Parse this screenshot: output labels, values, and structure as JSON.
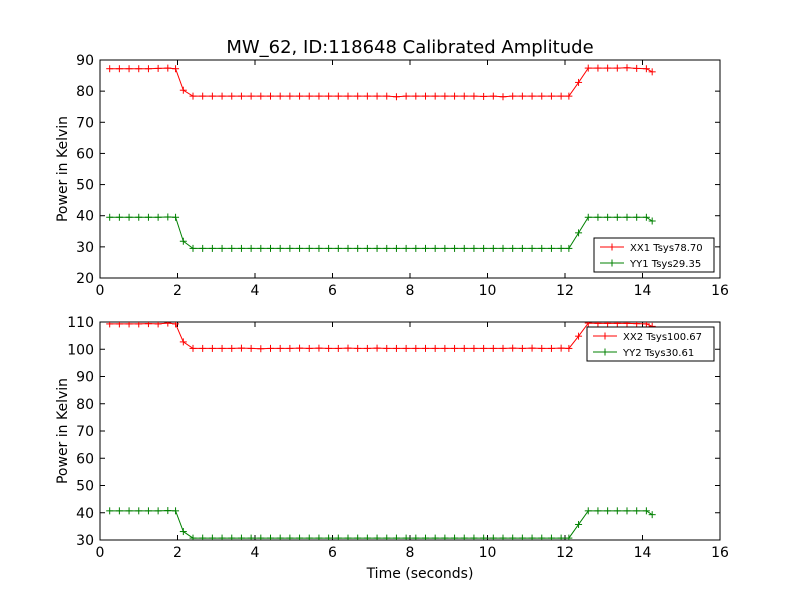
{
  "title": "MW_62, ID:118648 Calibrated Amplitude",
  "colors": {
    "red": "#ff0000",
    "green": "#008000",
    "axis": "#000000",
    "background": "#ffffff"
  },
  "chart_data": [
    {
      "type": "line",
      "title": "MW_62, ID:118648 Calibrated Amplitude",
      "xlabel": "",
      "ylabel": "Power in Kelvin",
      "xlim": [
        0,
        16
      ],
      "ylim": [
        20,
        90
      ],
      "xticks": [
        0,
        2,
        4,
        6,
        8,
        10,
        12,
        14,
        16
      ],
      "yticks": [
        20,
        30,
        40,
        50,
        60,
        70,
        80,
        90
      ],
      "grid": false,
      "legend": "lower-right",
      "marker": "+",
      "x": [
        0.25,
        0.5,
        0.75,
        1.0,
        1.25,
        1.5,
        1.75,
        1.95,
        2.15,
        2.4,
        2.65,
        2.9,
        3.15,
        3.4,
        3.65,
        3.9,
        4.15,
        4.4,
        4.65,
        4.9,
        5.15,
        5.4,
        5.65,
        5.9,
        6.15,
        6.4,
        6.65,
        6.9,
        7.15,
        7.4,
        7.65,
        7.9,
        8.15,
        8.4,
        8.65,
        8.9,
        9.15,
        9.4,
        9.65,
        9.9,
        10.15,
        10.4,
        10.65,
        10.9,
        11.15,
        11.4,
        11.65,
        11.9,
        12.1,
        12.35,
        12.6,
        12.85,
        13.1,
        13.35,
        13.6,
        13.85,
        14.1,
        14.25
      ],
      "series": [
        {
          "name": "XX1 Tsys78.70",
          "color": "#ff0000",
          "values": [
            87.2,
            87.2,
            87.2,
            87.2,
            87.2,
            87.3,
            87.4,
            87.2,
            80.3,
            78.4,
            78.4,
            78.4,
            78.4,
            78.4,
            78.4,
            78.4,
            78.4,
            78.4,
            78.4,
            78.4,
            78.4,
            78.4,
            78.4,
            78.4,
            78.4,
            78.4,
            78.4,
            78.4,
            78.4,
            78.4,
            78.2,
            78.4,
            78.4,
            78.4,
            78.4,
            78.4,
            78.4,
            78.4,
            78.4,
            78.3,
            78.4,
            78.2,
            78.4,
            78.4,
            78.4,
            78.4,
            78.4,
            78.4,
            78.4,
            82.8,
            87.4,
            87.4,
            87.4,
            87.4,
            87.5,
            87.3,
            87.2,
            86.2
          ]
        },
        {
          "name": "YY1 Tsys29.35",
          "color": "#008000",
          "values": [
            39.5,
            39.5,
            39.5,
            39.5,
            39.5,
            39.5,
            39.6,
            39.5,
            31.8,
            29.5,
            29.5,
            29.5,
            29.5,
            29.5,
            29.5,
            29.5,
            29.5,
            29.5,
            29.5,
            29.5,
            29.5,
            29.5,
            29.5,
            29.5,
            29.5,
            29.5,
            29.5,
            29.5,
            29.5,
            29.5,
            29.5,
            29.5,
            29.5,
            29.5,
            29.5,
            29.5,
            29.5,
            29.5,
            29.5,
            29.5,
            29.5,
            29.5,
            29.5,
            29.5,
            29.5,
            29.5,
            29.5,
            29.5,
            29.5,
            34.5,
            39.5,
            39.5,
            39.5,
            39.5,
            39.5,
            39.5,
            39.5,
            38.3
          ]
        }
      ]
    },
    {
      "type": "line",
      "title": "",
      "xlabel": "Time (seconds)",
      "ylabel": "Power in Kelvin",
      "xlim": [
        0,
        16
      ],
      "ylim": [
        30,
        110
      ],
      "xticks": [
        0,
        2,
        4,
        6,
        8,
        10,
        12,
        14,
        16
      ],
      "yticks": [
        30,
        40,
        50,
        60,
        70,
        80,
        90,
        100,
        110
      ],
      "grid": false,
      "legend": "upper-right",
      "marker": "+",
      "x": [
        0.25,
        0.5,
        0.75,
        1.0,
        1.25,
        1.5,
        1.75,
        1.95,
        2.15,
        2.4,
        2.65,
        2.9,
        3.15,
        3.4,
        3.65,
        3.9,
        4.15,
        4.4,
        4.65,
        4.9,
        5.15,
        5.4,
        5.65,
        5.9,
        6.15,
        6.4,
        6.65,
        6.9,
        7.15,
        7.4,
        7.65,
        7.9,
        8.15,
        8.4,
        8.65,
        8.9,
        9.15,
        9.4,
        9.65,
        9.9,
        10.15,
        10.4,
        10.65,
        10.9,
        11.15,
        11.4,
        11.65,
        11.9,
        12.1,
        12.35,
        12.6,
        12.85,
        13.1,
        13.35,
        13.6,
        13.85,
        14.1,
        14.25
      ],
      "series": [
        {
          "name": "XX2 Tsys100.67",
          "color": "#ff0000",
          "values": [
            109.3,
            109.3,
            109.3,
            109.3,
            109.4,
            109.3,
            109.6,
            109.3,
            102.7,
            100.3,
            100.3,
            100.3,
            100.3,
            100.3,
            100.4,
            100.3,
            100.2,
            100.3,
            100.3,
            100.3,
            100.4,
            100.3,
            100.4,
            100.3,
            100.3,
            100.4,
            100.3,
            100.3,
            100.4,
            100.3,
            100.3,
            100.3,
            100.3,
            100.3,
            100.3,
            100.3,
            100.3,
            100.3,
            100.3,
            100.3,
            100.3,
            100.3,
            100.4,
            100.3,
            100.4,
            100.3,
            100.3,
            100.4,
            100.3,
            104.8,
            109.6,
            109.5,
            109.5,
            109.5,
            109.5,
            109.4,
            109.3,
            108.4
          ]
        },
        {
          "name": "YY2 Tsys30.61",
          "color": "#008000",
          "values": [
            40.7,
            40.7,
            40.7,
            40.7,
            40.7,
            40.7,
            40.8,
            40.7,
            33.1,
            30.7,
            30.7,
            30.7,
            30.7,
            30.7,
            30.7,
            30.7,
            30.7,
            30.7,
            30.7,
            30.7,
            30.7,
            30.7,
            30.7,
            30.7,
            30.7,
            30.7,
            30.7,
            30.7,
            30.7,
            30.7,
            30.7,
            30.7,
            30.7,
            30.7,
            30.7,
            30.7,
            30.7,
            30.7,
            30.7,
            30.7,
            30.7,
            30.7,
            30.7,
            30.7,
            30.7,
            30.7,
            30.7,
            30.7,
            30.7,
            35.7,
            40.7,
            40.7,
            40.7,
            40.7,
            40.7,
            40.7,
            40.7,
            39.3
          ]
        }
      ]
    }
  ]
}
